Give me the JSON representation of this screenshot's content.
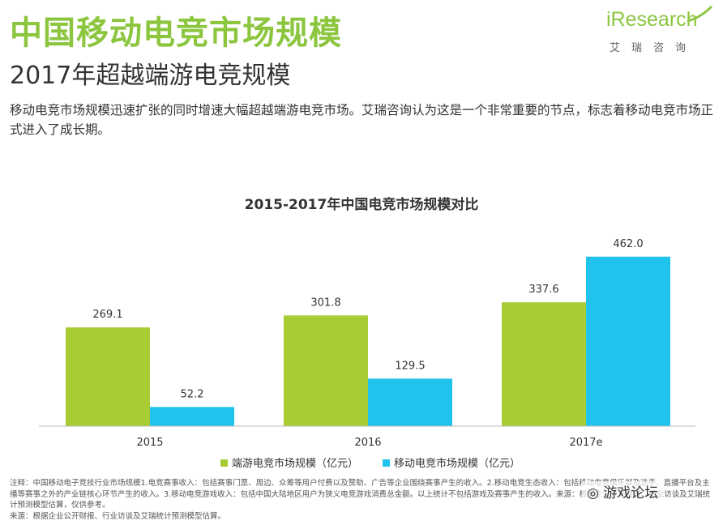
{
  "header": {
    "title": "中国移动电竞市场规模",
    "subtitle": "2017年超越端游电竞规模"
  },
  "logo": {
    "word": "iResearch",
    "cn": "艾瑞咨询"
  },
  "description": "移动电竞市场规模迅速扩张的同时增速大幅超越端游电竞市场。艾瑞咨询认为这是一个非常重要的节点，标志着移动电竞市场正式进入了成长期。",
  "chart_data": {
    "type": "bar",
    "title": "2015-2017年中国电竞市场规模对比",
    "categories": [
      "2015",
      "2016",
      "2017e"
    ],
    "series": [
      {
        "name": "端游电竞市场规模（亿元）",
        "color": "#a8cc34",
        "values": [
          269.1,
          301.8,
          337.6
        ]
      },
      {
        "name": "移动电竞市场规模（亿元）",
        "color": "#1fc3ec",
        "values": [
          52.2,
          129.5,
          462.0
        ]
      }
    ],
    "value_labels": [
      [
        "269.1",
        "301.8",
        "337.6"
      ],
      [
        "52.2",
        "129.5",
        "462.0"
      ]
    ],
    "ylim": [
      0,
      530
    ],
    "legend_position": "bottom",
    "grid": false
  },
  "notes": [
    "注释：中国移动电子竞技行业市场规模1.电竞赛事收入：包括赛事门票、周边、众筹等用户付费以及赞助、广告等企业围绕赛事产生的收入。2.移动电竞生态收入：包括移动电竞俱乐部及选手、直播平台及主播等赛事之外的产业链核心环节产生的收入。3.移动电竞游戏收入：包括中国大陆地区用户为狭义电竞游戏消费总金额。以上统计不包括游戏及赛事产生的收入。来源：根据企业公开财报、行业访谈及艾瑞统计预测模型估算，仅供参考。",
    "来源：根据企业公开财报、行业访谈及艾瑞统计预测模型估算。"
  ],
  "watermark": "游戏论坛"
}
